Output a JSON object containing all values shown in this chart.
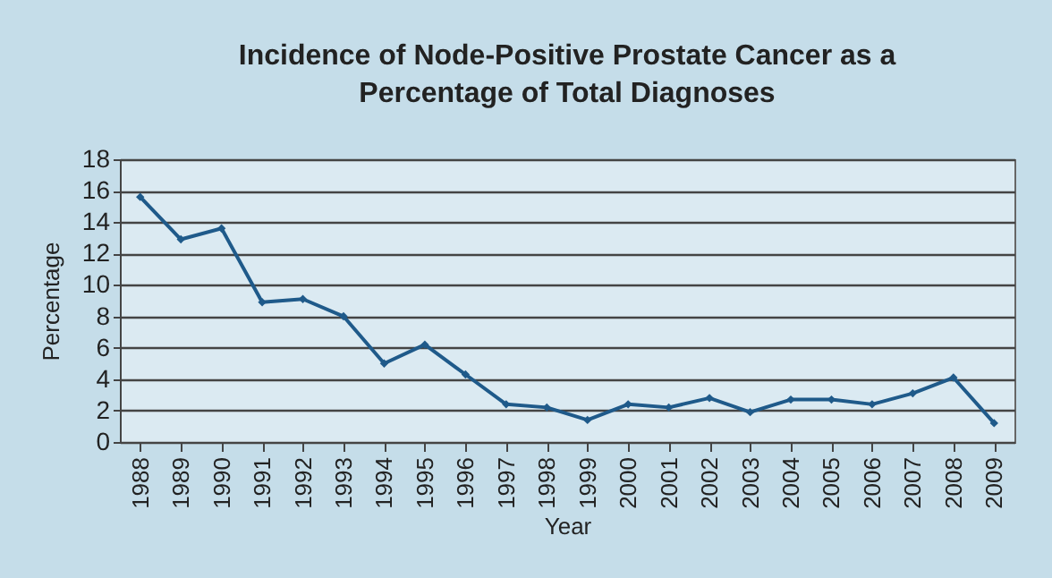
{
  "chart_data": {
    "type": "line",
    "title": [
      "Incidence of Node-Positive Prostate Cancer as a",
      "Percentage of Total Diagnoses"
    ],
    "xlabel": "Year",
    "ylabel": "Percentage",
    "categories": [
      "1988",
      "1989",
      "1990",
      "1991",
      "1992",
      "1993",
      "1994",
      "1995",
      "1996",
      "1997",
      "1998",
      "1999",
      "2000",
      "2001",
      "2002",
      "2003",
      "2004",
      "2005",
      "2006",
      "2007",
      "2008",
      "2009"
    ],
    "series": [
      {
        "color": "#1f5a8a",
        "values": [
          15.6,
          12.9,
          13.6,
          8.9,
          9.1,
          8.0,
          5.0,
          6.2,
          4.3,
          2.4,
          2.2,
          1.4,
          2.4,
          2.2,
          2.8,
          1.9,
          2.7,
          2.7,
          2.4,
          3.1,
          4.1,
          1.2
        ]
      }
    ],
    "ylim": [
      0,
      18
    ],
    "yticks": [
      0,
      2,
      4,
      6,
      8,
      10,
      12,
      14,
      16,
      18
    ],
    "grid": "y",
    "marker": "diamond",
    "legend": false
  }
}
